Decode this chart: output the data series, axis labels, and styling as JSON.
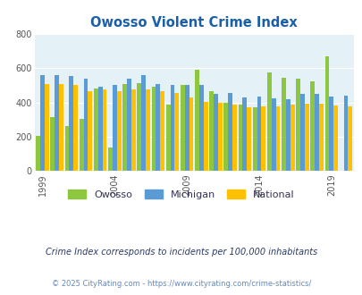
{
  "title": "Owosso Violent Crime Index",
  "title_color": "#1a5fa8",
  "years": [
    1999,
    2000,
    2001,
    2002,
    2003,
    2004,
    2005,
    2006,
    2007,
    2008,
    2009,
    2010,
    2011,
    2012,
    2013,
    2014,
    2015,
    2016,
    2017,
    2018,
    2019,
    2020
  ],
  "owosso": [
    205,
    315,
    265,
    305,
    480,
    140,
    510,
    515,
    490,
    390,
    500,
    590,
    465,
    400,
    390,
    370,
    575,
    545,
    540,
    525,
    670,
    0
  ],
  "michigan": [
    560,
    560,
    555,
    540,
    490,
    500,
    540,
    560,
    510,
    505,
    505,
    505,
    450,
    455,
    430,
    435,
    425,
    420,
    450,
    450,
    435,
    440
  ],
  "national": [
    510,
    510,
    505,
    465,
    475,
    465,
    475,
    475,
    465,
    455,
    430,
    405,
    400,
    390,
    370,
    375,
    375,
    390,
    395,
    395,
    385,
    380
  ],
  "owosso_color": "#8dc63f",
  "michigan_color": "#5b9bd5",
  "national_color": "#ffc000",
  "plot_bg": "#e4f1f7",
  "ylim": [
    0,
    800
  ],
  "yticks": [
    0,
    200,
    400,
    600,
    800
  ],
  "xlabel_tick_years": [
    1999,
    2004,
    2009,
    2014,
    2019
  ],
  "footnote1": "Crime Index corresponds to incidents per 100,000 inhabitants",
  "footnote2": "© 2025 CityRating.com - https://www.cityrating.com/crime-statistics/",
  "footnote1_color": "#2a3a6a",
  "footnote2_color": "#6688bb"
}
